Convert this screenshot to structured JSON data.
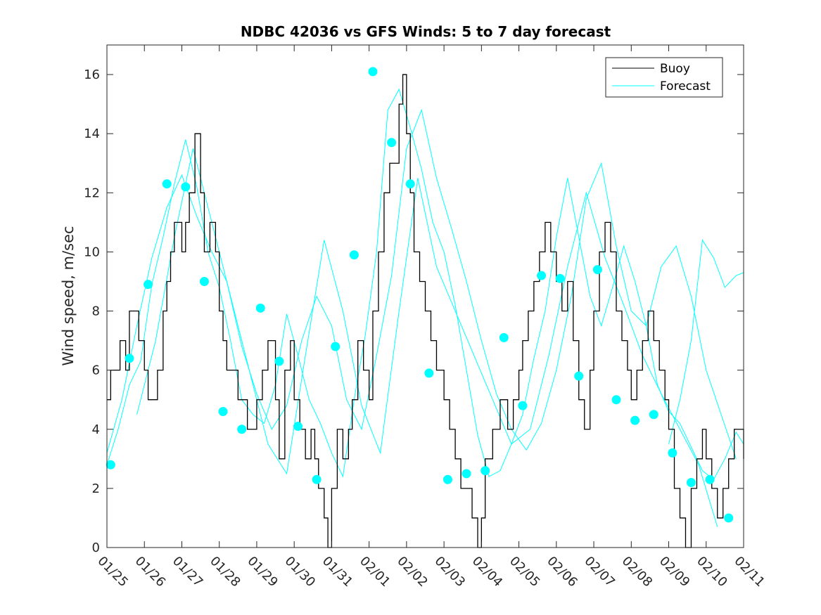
{
  "chart_data": {
    "type": "line",
    "title": "NDBC 42036 vs GFS Winds: 5 to 7 day forecast",
    "ylabel": "Wind speed, m/sec",
    "xlabel": "",
    "x_range_days": [
      0,
      17
    ],
    "ylim": [
      0,
      17
    ],
    "yticks": [
      0,
      2,
      4,
      6,
      8,
      10,
      12,
      14,
      16
    ],
    "xtick_labels": [
      "01/25",
      "01/26",
      "01/27",
      "01/28",
      "01/29",
      "01/30",
      "01/31",
      "02/01",
      "02/02",
      "02/03",
      "02/04",
      "02/05",
      "02/06",
      "02/07",
      "02/08",
      "02/09",
      "02/10",
      "02/11"
    ],
    "colors": {
      "buoy": "#000000",
      "forecast": "#00ffff"
    },
    "legend": {
      "position": "top-right",
      "entries": [
        "Buoy",
        "Forecast"
      ]
    },
    "series": [
      {
        "name": "Buoy",
        "x": [
          0,
          0.1,
          0.2,
          0.35,
          0.5,
          0.6,
          0.7,
          0.85,
          1.0,
          1.1,
          1.25,
          1.35,
          1.5,
          1.6,
          1.7,
          1.8,
          2.0,
          2.1,
          2.2,
          2.35,
          2.5,
          2.6,
          2.75,
          2.9,
          3.0,
          3.1,
          3.2,
          3.4,
          3.5,
          3.6,
          3.75,
          3.9,
          4.0,
          4.15,
          4.3,
          4.5,
          4.6,
          4.75,
          4.9,
          5.0,
          5.15,
          5.3,
          5.45,
          5.55,
          5.65,
          5.8,
          5.9,
          6.0,
          6.15,
          6.3,
          6.45,
          6.55,
          6.7,
          6.85,
          7.0,
          7.1,
          7.25,
          7.4,
          7.55,
          7.7,
          7.8,
          7.9,
          8.0,
          8.1,
          8.2,
          8.35,
          8.5,
          8.65,
          8.8,
          9.0,
          9.15,
          9.3,
          9.45,
          9.6,
          9.75,
          9.9,
          10.0,
          10.1,
          10.3,
          10.5,
          10.7,
          10.85,
          11.0,
          11.1,
          11.25,
          11.4,
          11.55,
          11.7,
          11.85,
          12.0,
          12.15,
          12.3,
          12.45,
          12.6,
          12.75,
          12.9,
          13.0,
          13.15,
          13.3,
          13.45,
          13.6,
          13.75,
          13.9,
          14.0,
          14.15,
          14.3,
          14.45,
          14.6,
          14.75,
          14.9,
          15.0,
          15.15,
          15.3,
          15.45,
          15.6,
          15.75,
          15.9,
          16.0,
          16.15,
          16.3,
          16.45,
          16.6,
          16.75,
          17.0
        ],
        "values": [
          5,
          6,
          6,
          7,
          6,
          8,
          8,
          7,
          6,
          5,
          5,
          6,
          8,
          9,
          10,
          11,
          10,
          11,
          12,
          14,
          12,
          10,
          11,
          10,
          8,
          7,
          6,
          6,
          5,
          5,
          4,
          4,
          5,
          6,
          7,
          5,
          3,
          6,
          7,
          5,
          4,
          3,
          4,
          3,
          2,
          1,
          0,
          2,
          4,
          3,
          4,
          5,
          7,
          6,
          5,
          8,
          10,
          12,
          13,
          13,
          15,
          16,
          14,
          12,
          10,
          9,
          8,
          7,
          6,
          5,
          4,
          3,
          2,
          2,
          1,
          0,
          1,
          3,
          4,
          5,
          4,
          5,
          6,
          7,
          8,
          9,
          10,
          11,
          10,
          9,
          8,
          9,
          7,
          5,
          4,
          6,
          8,
          10,
          11,
          10,
          8,
          7,
          6,
          5,
          6,
          7,
          8,
          7,
          6,
          5,
          4,
          2,
          1,
          0,
          2,
          3,
          4,
          3,
          2,
          1,
          2,
          3,
          4,
          3
        ]
      },
      {
        "name": "Forecast",
        "x": [
          0,
          0.3,
          0.6,
          0.9,
          1.2,
          1.5,
          1.8,
          2.1,
          2.4,
          2.7,
          3.0,
          3.3,
          3.6,
          3.9,
          4.2,
          4.5,
          4.8,
          5.1,
          5.4,
          5.7,
          6.0,
          6.3,
          6.6,
          6.9,
          7.2,
          7.5,
          7.8,
          8.1,
          8.4,
          8.7,
          9.0,
          9.3,
          9.6,
          9.9,
          10.2,
          10.5,
          10.8,
          11.1,
          11.4,
          11.7,
          12.0,
          12.3,
          12.6,
          12.9,
          13.2,
          13.5,
          13.8,
          14.1,
          14.4,
          14.7,
          15.0,
          15.3,
          15.6,
          15.9,
          16.2,
          16.5,
          16.8,
          17.0
        ],
        "values": [
          2.8,
          4.0,
          5.5,
          6.3,
          8.9,
          10.5,
          12.3,
          13.8,
          12.2,
          10.0,
          8.8,
          7.0,
          5.0,
          4.5,
          4.2,
          5.5,
          7.9,
          6.5,
          5.0,
          4.2,
          3.2,
          2.4,
          5.0,
          7.2,
          10.0,
          14.8,
          15.5,
          14.2,
          12.8,
          11.0,
          10.0,
          8.2,
          6.0,
          3.8,
          2.4,
          2.6,
          3.5,
          4.5,
          6.4,
          8.0,
          10.5,
          12.5,
          10.5,
          8.5,
          7.5,
          8.8,
          10.2,
          9.0,
          7.5,
          5.5,
          4.6,
          4.2,
          3.4,
          2.6,
          2.3,
          3.0,
          3.9,
          3.5
        ]
      },
      {
        "name": "Forecast",
        "x": [
          0,
          0.4,
          0.8,
          1.2,
          1.6,
          2.0,
          2.4,
          2.8,
          3.2,
          3.6,
          4.0,
          4.4,
          4.8,
          5.2,
          5.6,
          6.0,
          6.4,
          6.8,
          7.2,
          7.6,
          8.0,
          8.4,
          8.8,
          9.2,
          9.6,
          10.0,
          10.4,
          10.8,
          11.2,
          11.6,
          12.0,
          12.4,
          12.8,
          13.2,
          13.6,
          14.0,
          14.4,
          14.8,
          15.2,
          15.6,
          16.0,
          16.4,
          16.8
        ],
        "values": [
          3.2,
          5.0,
          7.5,
          9.8,
          11.5,
          12.6,
          11.2,
          10.0,
          9.0,
          6.8,
          5.2,
          4.0,
          4.8,
          7.0,
          8.5,
          7.5,
          5.0,
          4.0,
          6.5,
          9.2,
          13.5,
          14.8,
          12.5,
          10.8,
          9.0,
          7.0,
          5.2,
          4.0,
          3.3,
          4.2,
          6.0,
          8.5,
          11.8,
          13.0,
          10.2,
          8.0,
          7.5,
          9.5,
          10.2,
          8.5,
          6.0,
          4.5,
          3.0
        ]
      },
      {
        "name": "Forecast",
        "x": [
          0.8,
          1.3,
          1.8,
          2.3,
          2.8,
          3.3,
          3.8,
          4.3,
          4.8,
          5.3,
          5.8,
          6.3,
          6.8,
          7.3,
          7.8,
          8.3,
          8.8,
          9.3,
          9.8,
          10.3,
          10.8,
          11.3,
          11.8,
          12.3,
          12.8,
          13.3,
          13.8,
          14.3,
          14.8,
          15.3,
          15.8,
          16.3
        ],
        "values": [
          4.5,
          7.0,
          10.5,
          13.5,
          11.0,
          8.5,
          6.0,
          3.5,
          2.5,
          6.5,
          10.4,
          8.0,
          4.8,
          3.2,
          8.0,
          12.5,
          9.5,
          8.0,
          6.5,
          5.0,
          3.5,
          4.0,
          6.5,
          9.5,
          12.0,
          9.8,
          8.2,
          6.5,
          5.2,
          4.0,
          2.8,
          0.7
        ]
      },
      {
        "name": "Forecast",
        "x": [
          15.0,
          15.3,
          15.6,
          15.9,
          16.2,
          16.5,
          16.8,
          17.0
        ],
        "values": [
          3.5,
          5.0,
          7.0,
          10.4,
          9.8,
          8.8,
          9.2,
          9.3
        ]
      }
    ],
    "markers": {
      "name": "Forecast points",
      "x": [
        0.1,
        0.6,
        1.1,
        1.6,
        2.1,
        2.6,
        3.1,
        3.6,
        4.1,
        4.6,
        5.1,
        5.6,
        6.1,
        6.6,
        7.1,
        7.6,
        8.1,
        8.6,
        9.1,
        9.6,
        10.1,
        10.6,
        11.1,
        11.6,
        12.1,
        12.6,
        13.1,
        13.6,
        14.1,
        14.6,
        15.1,
        15.6,
        16.1,
        16.6
      ],
      "values": [
        2.8,
        6.4,
        8.9,
        12.3,
        12.2,
        9.0,
        4.6,
        4.0,
        8.1,
        6.3,
        4.1,
        2.3,
        6.8,
        9.9,
        16.1,
        13.7,
        12.3,
        5.9,
        2.3,
        2.5,
        2.6,
        7.1,
        4.8,
        9.2,
        9.1,
        5.8,
        9.4,
        5.0,
        4.3,
        4.5,
        3.2,
        2.2,
        2.3,
        1.0
      ]
    }
  }
}
